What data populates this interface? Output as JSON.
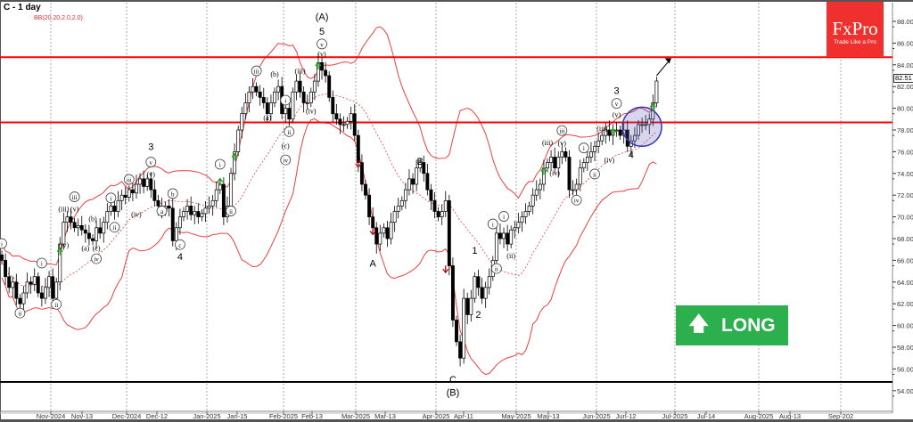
{
  "header": {
    "title": "C - 1 day",
    "indicator": "BB(20,20,2.0,2.0)"
  },
  "logo": {
    "brand": "FxPro",
    "tagline": "Trade Like a Pro",
    "color": "#f0302f"
  },
  "signal_badge": {
    "label": "LONG",
    "icon": "arrow-up-icon",
    "color": "#2bb04d"
  },
  "last_price": "82.51",
  "chart_data": {
    "type": "candlestick",
    "title": "C - 1 day",
    "ylim": [
      52.5,
      89.5
    ],
    "y_ticks": [
      "88.00",
      "86.00",
      "84.00",
      "82.00",
      "80.00",
      "78.00",
      "76.00",
      "74.00",
      "72.00",
      "70.00",
      "68.00",
      "66.00",
      "64.00",
      "62.00",
      "60.00",
      "58.00",
      "56.00",
      "54.00"
    ],
    "x_ticks": [
      "Nov-2024",
      "Nov-13",
      "Dec-2024",
      "Dec-12",
      "Jan-2025",
      "Jan-15",
      "Feb-2025",
      "Feb-13",
      "Mar-2025",
      "Mar-13",
      "Apr-2025",
      "Apr-11",
      "May-2025",
      "May-13",
      "Jun-2025",
      "Jun-12",
      "Jul-2025",
      "Jul-14",
      "Aug-2025",
      "Aug-13",
      "Sep-202"
    ],
    "grid": "vertical dashed at month starts",
    "closes": [
      66,
      64.5,
      63.5,
      64,
      62.5,
      62,
      63,
      64,
      63.8,
      64.5,
      63,
      62.5,
      63.5,
      64.5,
      62.5,
      64,
      67.5,
      69.5,
      70,
      69.5,
      69,
      69.2,
      68.8,
      68.5,
      68,
      67.8,
      69,
      68.5,
      69.5,
      70.5,
      71,
      70.5,
      71.5,
      72,
      71.8,
      72.5,
      72.2,
      73,
      73.5,
      72.8,
      73.5,
      72.5,
      71.5,
      71,
      70.5,
      71,
      70.8,
      67.8,
      69,
      70,
      70.5,
      71,
      70.2,
      70.5,
      70,
      70.3,
      70.8,
      71,
      71.5,
      72.5,
      73,
      70,
      71,
      74,
      76,
      78,
      79.5,
      80.5,
      81.5,
      82,
      81.5,
      81,
      80.5,
      79.5,
      80.5,
      81.5,
      82,
      79.5,
      80,
      79,
      81.5,
      82.5,
      81.5,
      80.5,
      80.5,
      81.5,
      82.5,
      84.2,
      83.5,
      83,
      81,
      79.5,
      79,
      78.5,
      78.5,
      78.8,
      79.5,
      77.5,
      75,
      73,
      72,
      70,
      69,
      67.5,
      68.5,
      69,
      68,
      69.5,
      70.5,
      71,
      71.5,
      72.5,
      73.5,
      73,
      74.5,
      75,
      74,
      72.5,
      71.5,
      70.5,
      70,
      70.5,
      71.5,
      65.5,
      60.5,
      58.5,
      57,
      62.5,
      61,
      62.5,
      64.5,
      63.5,
      62.5,
      63.5,
      64.5,
      66,
      68.5,
      68,
      68.5,
      67.5,
      68.8,
      69,
      69.5,
      70,
      70.5,
      71,
      72,
      72.5,
      73,
      74.5,
      75,
      75.5,
      74.5,
      75.5,
      76,
      75.5,
      72.5,
      72.5,
      73,
      74.5,
      75,
      75.5,
      76,
      76.5,
      77,
      77.5,
      78,
      77.5,
      78,
      78,
      77.5,
      78,
      76.5,
      77,
      77.5,
      78.5,
      78.5,
      78.5,
      79,
      80.5,
      82.51
    ],
    "bollinger": {
      "period": 20,
      "deviation": 2.0,
      "color": "#e84040"
    },
    "horizontal_levels": [
      {
        "price": 84.7,
        "color": "#ff0000"
      },
      {
        "price": 78.7,
        "color": "#ff0000"
      },
      {
        "price": 54.8,
        "color": "#000000"
      }
    ],
    "highlight_circle": {
      "index": 176,
      "price": 78.3,
      "color": "#3a3aa8"
    },
    "projection_arrow": {
      "from_index": 180,
      "from_price": 83.0,
      "to_index": 184,
      "to_price": 84.6
    },
    "signals": [
      {
        "index": 16,
        "price": 66.8,
        "dir": "up"
      },
      {
        "index": 60,
        "price": 73.2,
        "dir": "up"
      },
      {
        "index": 64,
        "price": 75.5,
        "dir": "up"
      },
      {
        "index": 87,
        "price": 83.9,
        "dir": "up"
      },
      {
        "index": 149,
        "price": 74.2,
        "dir": "up"
      },
      {
        "index": 168,
        "price": 77.8,
        "dir": "up"
      },
      {
        "index": 179,
        "price": 80.1,
        "dir": "up"
      },
      {
        "index": 98,
        "price": 74.9,
        "dir": "down"
      },
      {
        "index": 102,
        "price": 68.7,
        "dir": "down"
      },
      {
        "index": 122,
        "price": 65.2,
        "dir": "down"
      }
    ],
    "wave_labels": [
      {
        "t": "i",
        "c": true,
        "i": 0,
        "p": 67.3
      },
      {
        "t": "ii",
        "c": true,
        "i": 5,
        "p": 60.9
      },
      {
        "t": "i",
        "c": true,
        "i": 11,
        "p": 65.5
      },
      {
        "t": "ii",
        "c": true,
        "i": 15,
        "p": 61.7
      },
      {
        "t": "(iii)",
        "c": false,
        "i": 17,
        "p": 70.5
      },
      {
        "t": "iii",
        "c": true,
        "i": 20,
        "p": 71.6
      },
      {
        "t": "(v)",
        "c": false,
        "i": 20,
        "p": 70.5
      },
      {
        "t": "(iv)",
        "c": false,
        "i": 17,
        "p": 67.2
      },
      {
        "t": "iv",
        "c": true,
        "i": 26,
        "p": 65.9
      },
      {
        "t": "(a)",
        "c": false,
        "i": 23,
        "p": 66.9
      },
      {
        "t": "(b)",
        "c": false,
        "i": 25,
        "p": 69.6
      },
      {
        "t": "(c)",
        "c": false,
        "i": 26,
        "p": 66.9
      },
      {
        "t": "i",
        "c": true,
        "i": 30,
        "p": 71.5
      },
      {
        "t": "ii",
        "c": true,
        "i": 31,
        "p": 68.8
      },
      {
        "t": "iii",
        "c": true,
        "i": 35,
        "p": 73.2
      },
      {
        "t": "(iv)",
        "c": false,
        "i": 37,
        "p": 70.0
      },
      {
        "t": "(v)",
        "c": false,
        "i": 41,
        "p": 73.7
      },
      {
        "t": "v",
        "c": true,
        "i": 41,
        "p": 74.8
      },
      {
        "t": "3",
        "c": false,
        "i": 41,
        "p": 75.9
      },
      {
        "t": "a",
        "c": true,
        "i": 44,
        "p": 70.3
      },
      {
        "t": "b",
        "c": true,
        "i": 47,
        "p": 71.9
      },
      {
        "t": "c",
        "c": true,
        "i": 49,
        "p": 67.2
      },
      {
        "t": "4",
        "c": false,
        "i": 49,
        "p": 66.1
      },
      {
        "t": "i",
        "c": true,
        "i": 60,
        "p": 74.6
      },
      {
        "t": "ii",
        "c": true,
        "i": 63,
        "p": 70.3
      },
      {
        "t": "iii",
        "c": true,
        "i": 70,
        "p": 83.2
      },
      {
        "t": "(a)",
        "c": false,
        "i": 73,
        "p": 78.9
      },
      {
        "t": "(b)",
        "c": false,
        "i": 75,
        "p": 82.9
      },
      {
        "t": "i",
        "c": true,
        "i": 78,
        "p": 80.5
      },
      {
        "t": "ii",
        "c": true,
        "i": 79,
        "p": 77.6
      },
      {
        "t": "(c)",
        "c": false,
        "i": 78,
        "p": 76.3
      },
      {
        "t": "iv",
        "c": true,
        "i": 78,
        "p": 75.0
      },
      {
        "t": "(iii)",
        "c": false,
        "i": 82,
        "p": 83.2
      },
      {
        "t": "(iv)",
        "c": false,
        "i": 85,
        "p": 79.5
      },
      {
        "t": "(A)",
        "c": false,
        "i": 88,
        "p": 88.2
      },
      {
        "t": "5",
        "c": false,
        "i": 88,
        "p": 87.2
      },
      {
        "t": "v",
        "c": true,
        "i": 88,
        "p": 86.0
      },
      {
        "t": "(v)",
        "c": false,
        "i": 88,
        "p": 85.1
      },
      {
        "t": "A",
        "c": false,
        "i": 102,
        "p": 65.5
      },
      {
        "t": "B",
        "c": false,
        "i": 115,
        "p": 74.9
      },
      {
        "t": "C",
        "c": false,
        "i": 124,
        "p": 54.8
      },
      {
        "t": "(B)",
        "c": false,
        "i": 124,
        "p": 53.6
      },
      {
        "t": "1",
        "c": false,
        "i": 130,
        "p": 66.7
      },
      {
        "t": "2",
        "c": false,
        "i": 131,
        "p": 60.8
      },
      {
        "t": "i",
        "c": true,
        "i": 135,
        "p": 69.1
      },
      {
        "t": "i",
        "c": true,
        "i": 138,
        "p": 69.8
      },
      {
        "t": "ii",
        "c": true,
        "i": 136,
        "p": 65.0
      },
      {
        "t": "(ii)",
        "c": false,
        "i": 140,
        "p": 66.2
      },
      {
        "t": "(iii)",
        "c": false,
        "i": 150,
        "p": 76.6
      },
      {
        "t": "iii",
        "c": true,
        "i": 154,
        "p": 77.7
      },
      {
        "t": "(v)",
        "c": false,
        "i": 154,
        "p": 76.9
      },
      {
        "t": "(iv)",
        "c": false,
        "i": 152,
        "p": 73.8
      },
      {
        "t": "i",
        "c": true,
        "i": 160,
        "p": 76.1
      },
      {
        "t": "ii",
        "c": true,
        "i": 163,
        "p": 73.7
      },
      {
        "t": "iv",
        "c": true,
        "i": 158,
        "p": 71.3
      },
      {
        "t": "(iii)",
        "c": false,
        "i": 165,
        "p": 77.9
      },
      {
        "t": "(iv)",
        "c": false,
        "i": 167,
        "p": 75.0
      },
      {
        "t": "3",
        "c": false,
        "i": 169,
        "p": 81.4
      },
      {
        "t": "v",
        "c": true,
        "i": 169,
        "p": 80.2
      },
      {
        "t": "(v)",
        "c": false,
        "i": 169,
        "p": 79.2
      },
      {
        "t": "4",
        "c": false,
        "i": 173,
        "p": 75.5
      }
    ]
  }
}
